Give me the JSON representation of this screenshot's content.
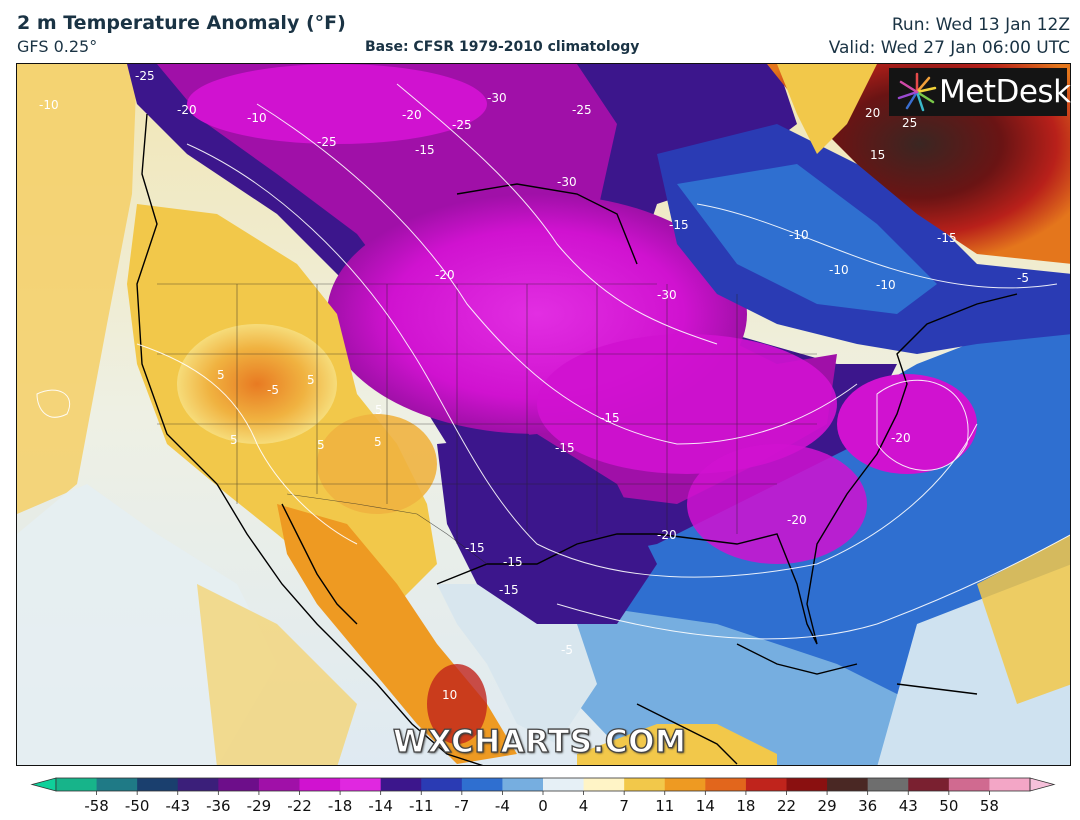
{
  "header": {
    "title": "2 m Temperature Anomaly (°F)",
    "model": "GFS 0.25°",
    "base": "Base: CFSR 1979-2010 climatology",
    "run": "Run: Wed 13 Jan 12Z",
    "valid": "Valid: Wed 27 Jan 06:00 UTC"
  },
  "branding": {
    "metdesk_logo": "MetDesk",
    "watermark": "WXCHARTS.COM"
  },
  "colorbar": {
    "tick_labels": [
      "-58",
      "-50",
      "-43",
      "-36",
      "-29",
      "-22",
      "-18",
      "-14",
      "-11",
      "-7",
      "-4",
      "0",
      "4",
      "7",
      "11",
      "14",
      "18",
      "22",
      "29",
      "36",
      "43",
      "50",
      "58"
    ],
    "colors": [
      "#17b48a",
      "#1f7a86",
      "#1a3f6e",
      "#3b1f7a",
      "#6d0e8a",
      "#a010a8",
      "#d012d0",
      "#e028e0",
      "#3c168c",
      "#2a3bb4",
      "#2f6fd0",
      "#76aee0",
      "#e6f0f6",
      "#fff4c6",
      "#f2c84a",
      "#ee9a22",
      "#e2661c",
      "#c0241c",
      "#8a1010",
      "#4a2824",
      "#6e6e6e",
      "#7a2030",
      "#d06a90",
      "#f3a6c6"
    ]
  },
  "contour_labels": [
    "-25",
    "-20",
    "-10",
    "-20",
    "-25",
    "-30",
    "-25",
    "-15",
    "-30",
    "-25",
    "-20",
    "-15",
    "-15",
    "-10",
    "-10",
    "-15",
    "-10",
    "-5",
    "-30",
    "-20",
    "-15",
    "-15",
    "-20",
    "-20",
    "-15",
    "-15",
    "-5",
    "-10",
    "-5",
    "5",
    "5",
    "5",
    "5",
    "5",
    "10",
    "5",
    "20",
    "25",
    "15"
  ]
}
